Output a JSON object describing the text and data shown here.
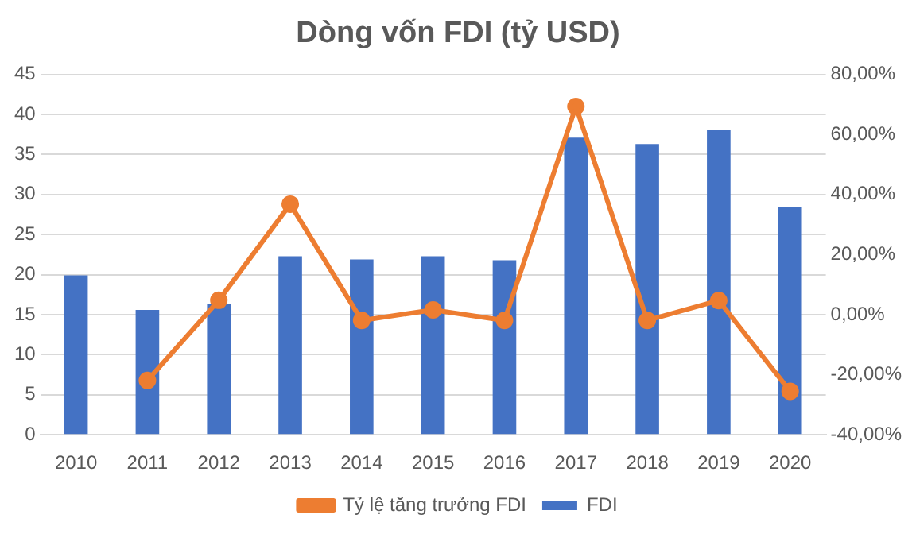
{
  "chart_data": {
    "type": "bar",
    "title": "Dòng vốn FDI (tỷ USD)",
    "categories": [
      "2010",
      "2011",
      "2012",
      "2013",
      "2014",
      "2015",
      "2016",
      "2017",
      "2018",
      "2019",
      "2020"
    ],
    "series": [
      {
        "name": "FDI",
        "color": "#4472c4",
        "values": [
          19.9,
          15.6,
          16.3,
          22.3,
          21.9,
          22.3,
          21.8,
          37.1,
          36.3,
          38.1,
          28.5
        ]
      },
      {
        "name": "Tỷ lệ tăng trưởng FDI",
        "type": "line",
        "axis": "y2",
        "color": "#ed7d31",
        "marker": "circle",
        "values": [
          null,
          -21.9,
          4.8,
          36.8,
          -1.9,
          1.6,
          -1.9,
          69.3,
          -1.9,
          4.7,
          -25.5
        ]
      }
    ],
    "ylim": [
      0,
      45
    ],
    "yticks": [
      0,
      5,
      10,
      15,
      20,
      25,
      30,
      35,
      40,
      45
    ],
    "y2lim": [
      -40,
      80
    ],
    "y2ticks": [
      {
        "value": -40,
        "label": "-40,00%"
      },
      {
        "value": -20,
        "label": "-20,00%"
      },
      {
        "value": 0,
        "label": "0,00%"
      },
      {
        "value": 20,
        "label": "20,00%"
      },
      {
        "value": 40,
        "label": "40,00%"
      },
      {
        "value": 60,
        "label": "60,00%"
      },
      {
        "value": 80,
        "label": "80,00%"
      }
    ],
    "grid": "y",
    "legend": "bottom"
  }
}
